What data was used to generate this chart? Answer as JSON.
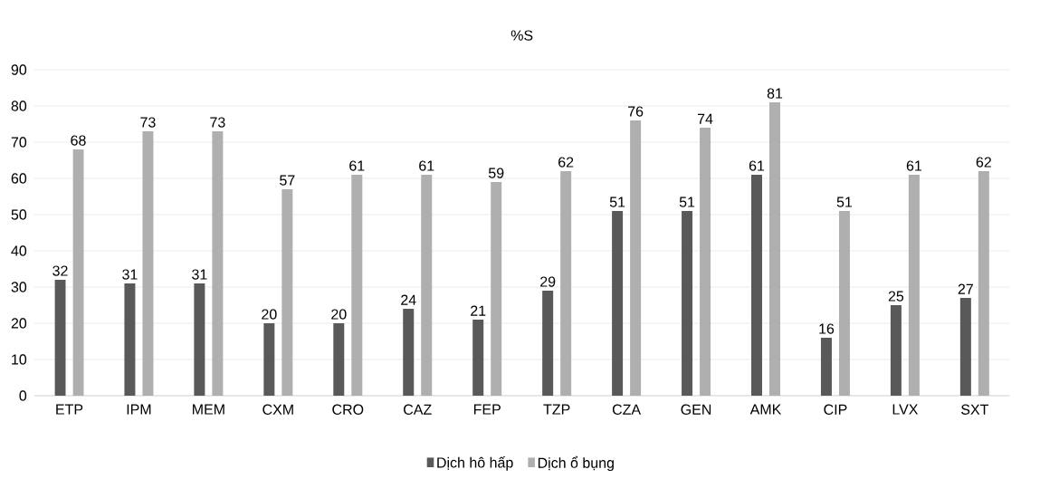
{
  "chart_data": {
    "type": "bar",
    "title": "%S",
    "categories": [
      "ETP",
      "IPM",
      "MEM",
      "CXM",
      "CRO",
      "CAZ",
      "FEP",
      "TZP",
      "CZA",
      "GEN",
      "AMK",
      "CIP",
      "LVX",
      "SXT"
    ],
    "series": [
      {
        "name": "Dịch hô hấp",
        "color": "#595959",
        "values": [
          32,
          31,
          31,
          20,
          20,
          24,
          21,
          29,
          51,
          51,
          61,
          16,
          25,
          27
        ]
      },
      {
        "name": "Dịch ổ bụng",
        "color": "#afafaf",
        "values": [
          68,
          73,
          73,
          57,
          61,
          61,
          59,
          62,
          76,
          74,
          81,
          51,
          61,
          62
        ]
      }
    ],
    "ylim": [
      0,
      90
    ],
    "yticks": [
      0,
      10,
      20,
      30,
      40,
      50,
      60,
      70,
      80,
      90
    ],
    "grid": "y",
    "legend": "bottom",
    "data_labels": true
  }
}
